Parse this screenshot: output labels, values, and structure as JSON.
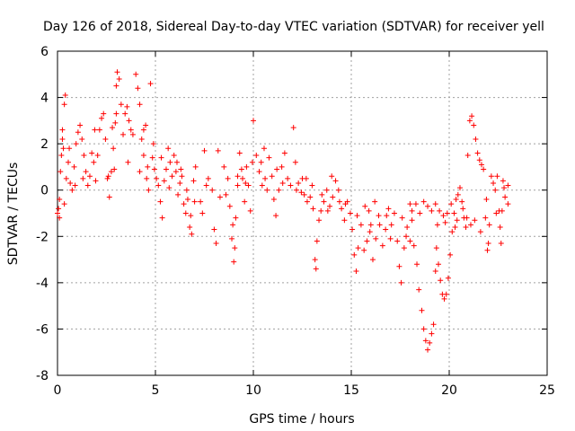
{
  "chart_data": {
    "type": "scatter",
    "title": "Day 126 of 2018, Sidereal Day-to-day VTEC variation (SDTVAR) for receiver yell",
    "xlabel": "GPS time / hours",
    "ylabel": "SDTVAR / TECUs",
    "xlim": [
      0,
      25
    ],
    "ylim": [
      -8,
      6
    ],
    "x_ticks": [
      0,
      5,
      10,
      15,
      20,
      25
    ],
    "y_ticks": [
      -8,
      -6,
      -4,
      -2,
      0,
      2,
      4,
      6
    ],
    "grid": true,
    "marker": "+",
    "series": [
      {
        "name": "SDTVAR",
        "color": "#ff0000",
        "points": [
          [
            0.0,
            -1.0
          ],
          [
            0.05,
            -0.8
          ],
          [
            0.1,
            -1.2
          ],
          [
            0.15,
            0.8
          ],
          [
            0.2,
            1.5
          ],
          [
            0.25,
            2.2
          ],
          [
            0.3,
            1.8
          ],
          [
            0.35,
            3.7
          ],
          [
            0.4,
            4.1
          ],
          [
            0.45,
            0.5
          ],
          [
            0.55,
            1.2
          ],
          [
            0.65,
            0.3
          ],
          [
            0.75,
            0.0
          ],
          [
            0.85,
            1.0
          ],
          [
            0.95,
            2.0
          ],
          [
            1.05,
            2.5
          ],
          [
            1.15,
            2.8
          ],
          [
            1.25,
            2.2
          ],
          [
            1.35,
            1.5
          ],
          [
            1.45,
            0.8
          ],
          [
            1.55,
            0.2
          ],
          [
            1.65,
            0.6
          ],
          [
            1.75,
            1.6
          ],
          [
            1.85,
            1.2
          ],
          [
            1.95,
            0.4
          ],
          [
            2.05,
            1.5
          ],
          [
            2.15,
            2.6
          ],
          [
            2.25,
            3.1
          ],
          [
            2.35,
            3.3
          ],
          [
            2.45,
            2.2
          ],
          [
            2.55,
            0.5
          ],
          [
            2.65,
            -0.3
          ],
          [
            2.75,
            0.8
          ],
          [
            2.85,
            1.8
          ],
          [
            2.95,
            2.9
          ],
          [
            3.0,
            4.5
          ],
          [
            3.05,
            5.1
          ],
          [
            3.15,
            4.8
          ],
          [
            3.25,
            3.7
          ],
          [
            3.35,
            2.4
          ],
          [
            3.45,
            3.3
          ],
          [
            3.55,
            3.6
          ],
          [
            3.65,
            3.0
          ],
          [
            3.75,
            2.6
          ],
          [
            3.85,
            2.4
          ],
          [
            4.0,
            5.0
          ],
          [
            4.1,
            4.4
          ],
          [
            4.2,
            3.7
          ],
          [
            4.3,
            2.2
          ],
          [
            4.4,
            2.6
          ],
          [
            4.5,
            2.8
          ],
          [
            4.55,
            0.5
          ],
          [
            4.6,
            1.0
          ],
          [
            4.65,
            0.0
          ],
          [
            4.75,
            4.6
          ],
          [
            4.85,
            1.4
          ],
          [
            4.95,
            0.9
          ],
          [
            5.05,
            0.5
          ],
          [
            5.15,
            0.2
          ],
          [
            5.25,
            -0.5
          ],
          [
            5.35,
            -1.2
          ],
          [
            5.45,
            0.4
          ],
          [
            5.55,
            0.9
          ],
          [
            5.65,
            1.8
          ],
          [
            5.75,
            1.2
          ],
          [
            5.85,
            0.6
          ],
          [
            5.95,
            1.5
          ],
          [
            6.05,
            0.8
          ],
          [
            6.15,
            -0.2
          ],
          [
            6.25,
            0.3
          ],
          [
            6.35,
            0.6
          ],
          [
            6.45,
            -0.6
          ],
          [
            6.55,
            -1.0
          ],
          [
            6.65,
            -0.4
          ],
          [
            6.75,
            -1.6
          ],
          [
            6.85,
            -1.9
          ],
          [
            6.95,
            0.4
          ],
          [
            7.05,
            1.0
          ],
          [
            7.3,
            -0.5
          ],
          [
            7.4,
            -1.0
          ],
          [
            7.5,
            1.7
          ],
          [
            7.7,
            0.5
          ],
          [
            7.9,
            0.0
          ],
          [
            8.0,
            -1.7
          ],
          [
            8.1,
            -2.3
          ],
          [
            8.2,
            1.7
          ],
          [
            8.3,
            -0.3
          ],
          [
            8.5,
            1.0
          ],
          [
            8.7,
            0.5
          ],
          [
            8.8,
            -0.7
          ],
          [
            8.9,
            -2.1
          ],
          [
            9.0,
            -3.1
          ],
          [
            9.1,
            -1.2
          ],
          [
            9.2,
            0.2
          ],
          [
            9.3,
            1.6
          ],
          [
            9.45,
            0.5
          ],
          [
            9.55,
            -0.5
          ],
          [
            9.65,
            1.0
          ],
          [
            9.75,
            0.2
          ],
          [
            9.85,
            -0.9
          ],
          [
            9.95,
            1.2
          ],
          [
            10.0,
            3.0
          ],
          [
            10.15,
            1.5
          ],
          [
            10.3,
            0.8
          ],
          [
            10.45,
            0.2
          ],
          [
            10.55,
            1.8
          ],
          [
            10.7,
            0.0
          ],
          [
            10.8,
            1.4
          ],
          [
            10.95,
            0.6
          ],
          [
            11.05,
            -0.4
          ],
          [
            11.15,
            -1.1
          ],
          [
            11.3,
            0.0
          ],
          [
            11.45,
            1.0
          ],
          [
            11.6,
            1.6
          ],
          [
            11.75,
            0.5
          ],
          [
            11.9,
            0.2
          ],
          [
            12.05,
            2.7
          ],
          [
            12.15,
            1.2
          ],
          [
            12.3,
            0.3
          ],
          [
            12.45,
            -0.1
          ],
          [
            12.6,
            -0.2
          ],
          [
            12.75,
            -0.5
          ],
          [
            12.9,
            -0.3
          ],
          [
            13.05,
            -0.8
          ],
          [
            13.15,
            -3.0
          ],
          [
            13.2,
            -3.4
          ],
          [
            13.25,
            -2.2
          ],
          [
            13.35,
            -1.3
          ],
          [
            13.45,
            -0.9
          ],
          [
            13.6,
            -0.5
          ],
          [
            13.75,
            0.0
          ],
          [
            13.9,
            -0.7
          ],
          [
            14.05,
            -0.3
          ],
          [
            14.2,
            0.4
          ],
          [
            14.35,
            0.0
          ],
          [
            14.5,
            -0.8
          ],
          [
            14.65,
            -1.3
          ],
          [
            14.8,
            -0.5
          ],
          [
            14.95,
            -1.0
          ],
          [
            15.05,
            -1.7
          ],
          [
            15.15,
            -2.8
          ],
          [
            15.25,
            -3.5
          ],
          [
            15.35,
            -2.5
          ],
          [
            15.5,
            -1.5
          ],
          [
            15.65,
            -2.6
          ],
          [
            15.8,
            -2.2
          ],
          [
            15.95,
            -1.8
          ],
          [
            16.1,
            -3.0
          ],
          [
            16.25,
            -2.1
          ],
          [
            16.45,
            -1.5
          ],
          [
            16.6,
            -2.4
          ],
          [
            16.75,
            -1.7
          ],
          [
            16.9,
            -0.8
          ],
          [
            17.05,
            -1.5
          ],
          [
            17.2,
            -1.0
          ],
          [
            17.35,
            -2.2
          ],
          [
            17.45,
            -3.3
          ],
          [
            17.55,
            -4.0
          ],
          [
            17.7,
            -2.5
          ],
          [
            17.85,
            -1.6
          ],
          [
            18.0,
            -0.6
          ],
          [
            18.1,
            -1.3
          ],
          [
            18.2,
            -2.4
          ],
          [
            18.35,
            -3.2
          ],
          [
            18.45,
            -4.3
          ],
          [
            18.6,
            -5.2
          ],
          [
            18.7,
            -6.0
          ],
          [
            18.8,
            -6.5
          ],
          [
            18.9,
            -6.9
          ],
          [
            19.0,
            -6.6
          ],
          [
            19.1,
            -6.2
          ],
          [
            19.2,
            -5.8
          ],
          [
            19.3,
            -3.5
          ],
          [
            19.35,
            -2.5
          ],
          [
            19.45,
            -3.2
          ],
          [
            19.55,
            -3.9
          ],
          [
            19.65,
            -4.5
          ],
          [
            19.75,
            -4.7
          ],
          [
            19.85,
            -4.5
          ],
          [
            19.95,
            -3.8
          ],
          [
            20.05,
            -2.8
          ],
          [
            20.15,
            -1.8
          ],
          [
            20.25,
            -1.0
          ],
          [
            20.35,
            -0.4
          ],
          [
            20.45,
            -0.2
          ],
          [
            20.55,
            0.1
          ],
          [
            20.65,
            -0.5
          ],
          [
            20.75,
            -1.2
          ],
          [
            20.85,
            -1.6
          ],
          [
            20.95,
            1.5
          ],
          [
            21.05,
            3.0
          ],
          [
            21.15,
            3.2
          ],
          [
            21.25,
            2.8
          ],
          [
            21.35,
            2.2
          ],
          [
            21.45,
            1.6
          ],
          [
            21.55,
            1.3
          ],
          [
            21.65,
            1.1
          ],
          [
            21.75,
            0.9
          ],
          [
            21.85,
            -1.2
          ],
          [
            21.95,
            -2.6
          ],
          [
            22.05,
            -1.5
          ],
          [
            22.15,
            0.6
          ],
          [
            22.25,
            0.3
          ],
          [
            22.35,
            0.0
          ],
          [
            22.45,
            0.6
          ],
          [
            22.55,
            -0.9
          ],
          [
            22.65,
            -2.3
          ],
          [
            22.75,
            0.4
          ],
          [
            22.8,
            0.1
          ],
          [
            22.85,
            -0.3
          ],
          [
            18.1,
            -0.9
          ],
          [
            18.3,
            -0.6
          ],
          [
            18.5,
            -1.0
          ],
          [
            18.7,
            -0.5
          ],
          [
            18.9,
            -0.7
          ],
          [
            19.1,
            -0.9
          ],
          [
            19.3,
            -0.6
          ],
          [
            19.5,
            -0.9
          ],
          [
            19.7,
            -1.1
          ],
          [
            19.9,
            -1.0
          ],
          [
            16.2,
            -0.5
          ],
          [
            16.4,
            -1.1
          ],
          [
            15.9,
            -0.9
          ],
          [
            17.6,
            -1.2
          ],
          [
            17.8,
            -2.0
          ],
          [
            18.0,
            -2.2
          ],
          [
            20.4,
            -1.3
          ],
          [
            20.7,
            -0.8
          ],
          [
            21.3,
            -1.3
          ],
          [
            21.6,
            -1.8
          ],
          [
            21.9,
            -0.4
          ],
          [
            22.0,
            -2.3
          ],
          [
            21.1,
            -1.5
          ],
          [
            20.9,
            -1.2
          ],
          [
            9.2,
            0.6
          ],
          [
            9.4,
            0.9
          ],
          [
            9.6,
            0.3
          ],
          [
            10.4,
            1.2
          ],
          [
            10.6,
            0.5
          ],
          [
            11.2,
            0.9
          ],
          [
            11.5,
            0.3
          ],
          [
            12.2,
            0.0
          ],
          [
            12.5,
            0.5
          ],
          [
            13.0,
            0.2
          ],
          [
            13.5,
            -0.2
          ],
          [
            14.0,
            0.6
          ],
          [
            14.4,
            -0.5
          ],
          [
            6.1,
            1.2
          ],
          [
            6.3,
            0.9
          ],
          [
            5.3,
            1.4
          ],
          [
            5.7,
            0.1
          ],
          [
            4.9,
            2.0
          ],
          [
            4.4,
            1.5
          ],
          [
            4.2,
            0.8
          ],
          [
            3.6,
            1.2
          ],
          [
            3.0,
            3.3
          ],
          [
            2.8,
            2.7
          ],
          [
            1.9,
            2.6
          ],
          [
            1.3,
            0.5
          ],
          [
            0.9,
            0.2
          ],
          [
            0.6,
            1.8
          ],
          [
            0.35,
            -0.6
          ],
          [
            0.25,
            2.6
          ],
          [
            0.1,
            -0.4
          ],
          [
            2.9,
            0.9
          ],
          [
            2.6,
            0.6
          ],
          [
            6.6,
            0.0
          ],
          [
            6.8,
            -1.1
          ],
          [
            7.0,
            -0.5
          ],
          [
            7.6,
            0.2
          ],
          [
            8.6,
            -0.2
          ],
          [
            8.95,
            -1.5
          ],
          [
            9.05,
            -2.5
          ],
          [
            12.7,
            0.5
          ],
          [
            13.8,
            -0.9
          ],
          [
            14.7,
            -0.6
          ],
          [
            15.3,
            -1.1
          ],
          [
            15.7,
            -0.7
          ],
          [
            16.0,
            -1.5
          ],
          [
            16.8,
            -1.1
          ],
          [
            17.0,
            -2.1
          ],
          [
            19.4,
            -1.5
          ],
          [
            19.8,
            -1.4
          ],
          [
            20.1,
            -0.6
          ],
          [
            20.3,
            -1.6
          ],
          [
            22.4,
            -1.0
          ],
          [
            22.6,
            -1.6
          ],
          [
            22.7,
            -0.9
          ],
          [
            23.0,
            0.2
          ],
          [
            23.0,
            -0.6
          ]
        ]
      }
    ]
  }
}
